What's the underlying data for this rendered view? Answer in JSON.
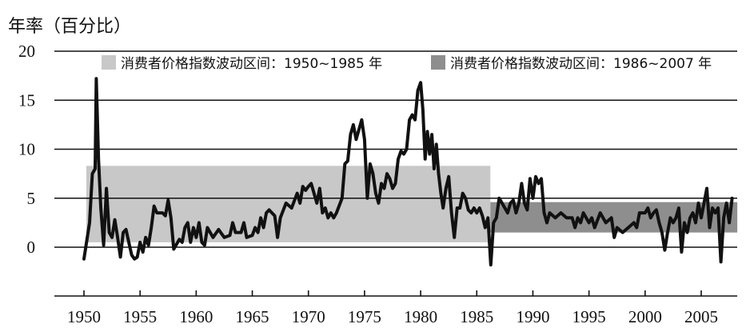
{
  "chart_data": {
    "type": "line",
    "title": "",
    "ylabel": "年率（百分比）",
    "xlabel": "",
    "xlim": [
      1950,
      2008
    ],
    "ylim": [
      -3,
      20
    ],
    "xticks": [
      1950,
      1955,
      1960,
      1965,
      1970,
      1975,
      1980,
      1985,
      1990,
      1995,
      2000,
      2005
    ],
    "yticks": [
      0,
      5,
      10,
      15,
      20
    ],
    "grid": "horizontal",
    "legend_position": "top",
    "colors": {
      "line": "#111111",
      "band1": "#c8c8c8",
      "band2": "#8e8e8e"
    },
    "bands": [
      {
        "name": "消费者价格指数波动区间：1950~1985 年",
        "x0": 1950,
        "x1": 1986,
        "y0": 0.5,
        "y1": 8.3
      },
      {
        "name": "消费者价格指数波动区间：1986~2007 年",
        "x0": 1986,
        "x1": 2008,
        "y0": 1.5,
        "y1": 4.6
      }
    ],
    "series": [
      {
        "values": [
          [
            1950.0,
            -1.2
          ],
          [
            1950.5,
            2.5
          ],
          [
            1950.75,
            7.5
          ],
          [
            1951.0,
            8.0
          ],
          [
            1951.1,
            17.2
          ],
          [
            1951.3,
            9.0
          ],
          [
            1951.5,
            4.0
          ],
          [
            1951.75,
            0.2
          ],
          [
            1952.0,
            6.0
          ],
          [
            1952.25,
            1.5
          ],
          [
            1952.5,
            1.0
          ],
          [
            1952.75,
            2.8
          ],
          [
            1953.0,
            1.0
          ],
          [
            1953.25,
            -1.0
          ],
          [
            1953.5,
            1.5
          ],
          [
            1953.75,
            1.8
          ],
          [
            1954.0,
            0.5
          ],
          [
            1954.25,
            -0.8
          ],
          [
            1954.5,
            -1.2
          ],
          [
            1954.75,
            -1.0
          ],
          [
            1955.0,
            0.5
          ],
          [
            1955.25,
            -0.5
          ],
          [
            1955.5,
            1.0
          ],
          [
            1955.75,
            0.2
          ],
          [
            1956.0,
            2.0
          ],
          [
            1956.25,
            4.2
          ],
          [
            1956.5,
            3.5
          ],
          [
            1957.0,
            3.5
          ],
          [
            1957.25,
            3.2
          ],
          [
            1957.5,
            4.8
          ],
          [
            1957.75,
            3.0
          ],
          [
            1958.0,
            -0.2
          ],
          [
            1958.5,
            0.8
          ],
          [
            1958.75,
            0.5
          ],
          [
            1959.0,
            2.0
          ],
          [
            1959.25,
            2.5
          ],
          [
            1959.5,
            0.5
          ],
          [
            1959.75,
            2.0
          ],
          [
            1960.0,
            1.0
          ],
          [
            1960.25,
            2.5
          ],
          [
            1960.5,
            0.5
          ],
          [
            1960.75,
            0.2
          ],
          [
            1961.0,
            2.0
          ],
          [
            1961.5,
            1.0
          ],
          [
            1962.0,
            1.8
          ],
          [
            1962.5,
            1.0
          ],
          [
            1963.0,
            1.2
          ],
          [
            1963.25,
            2.5
          ],
          [
            1963.5,
            1.5
          ],
          [
            1964.0,
            1.5
          ],
          [
            1964.25,
            2.5
          ],
          [
            1964.5,
            1.0
          ],
          [
            1965.0,
            1.2
          ],
          [
            1965.25,
            2.0
          ],
          [
            1965.5,
            1.5
          ],
          [
            1965.75,
            3.0
          ],
          [
            1966.0,
            2.0
          ],
          [
            1966.25,
            3.5
          ],
          [
            1966.5,
            3.8
          ],
          [
            1966.75,
            3.5
          ],
          [
            1967.0,
            3.2
          ],
          [
            1967.25,
            1.0
          ],
          [
            1967.5,
            3.0
          ],
          [
            1968.0,
            4.5
          ],
          [
            1968.5,
            4.0
          ],
          [
            1969.0,
            5.5
          ],
          [
            1969.25,
            4.5
          ],
          [
            1969.5,
            6.2
          ],
          [
            1969.75,
            5.8
          ],
          [
            1970.0,
            6.2
          ],
          [
            1970.25,
            6.5
          ],
          [
            1970.5,
            5.5
          ],
          [
            1970.75,
            4.5
          ],
          [
            1971.0,
            6.0
          ],
          [
            1971.25,
            3.5
          ],
          [
            1971.5,
            4.0
          ],
          [
            1971.75,
            3.0
          ],
          [
            1972.0,
            3.5
          ],
          [
            1972.25,
            3.0
          ],
          [
            1972.5,
            3.5
          ],
          [
            1973.0,
            5.0
          ],
          [
            1973.25,
            8.5
          ],
          [
            1973.5,
            8.8
          ],
          [
            1973.75,
            11.5
          ],
          [
            1974.0,
            12.5
          ],
          [
            1974.25,
            11.0
          ],
          [
            1974.5,
            12.0
          ],
          [
            1974.75,
            13.0
          ],
          [
            1975.0,
            11.0
          ],
          [
            1975.25,
            5.0
          ],
          [
            1975.5,
            8.5
          ],
          [
            1975.75,
            7.5
          ],
          [
            1976.0,
            5.5
          ],
          [
            1976.25,
            4.5
          ],
          [
            1976.5,
            6.5
          ],
          [
            1976.75,
            6.0
          ],
          [
            1977.0,
            7.5
          ],
          [
            1977.25,
            7.0
          ],
          [
            1977.5,
            6.0
          ],
          [
            1977.75,
            6.5
          ],
          [
            1978.0,
            9.0
          ],
          [
            1978.25,
            9.8
          ],
          [
            1978.5,
            9.5
          ],
          [
            1978.75,
            10.0
          ],
          [
            1979.0,
            13.0
          ],
          [
            1979.25,
            13.5
          ],
          [
            1979.5,
            13.0
          ],
          [
            1979.75,
            16.0
          ],
          [
            1980.0,
            16.8
          ],
          [
            1980.2,
            14.0
          ],
          [
            1980.4,
            9.0
          ],
          [
            1980.6,
            11.8
          ],
          [
            1980.8,
            9.5
          ],
          [
            1981.0,
            11.5
          ],
          [
            1981.2,
            8.0
          ],
          [
            1981.4,
            10.5
          ],
          [
            1981.6,
            7.5
          ],
          [
            1981.8,
            5.5
          ],
          [
            1982.0,
            4.0
          ],
          [
            1982.25,
            6.0
          ],
          [
            1982.5,
            7.2
          ],
          [
            1982.75,
            3.5
          ],
          [
            1983.0,
            1.0
          ],
          [
            1983.25,
            4.0
          ],
          [
            1983.5,
            4.0
          ],
          [
            1983.75,
            5.5
          ],
          [
            1984.0,
            5.0
          ],
          [
            1984.25,
            3.8
          ],
          [
            1984.5,
            3.5
          ],
          [
            1984.75,
            4.0
          ],
          [
            1985.0,
            3.5
          ],
          [
            1985.25,
            4.0
          ],
          [
            1985.5,
            3.2
          ],
          [
            1985.75,
            2.0
          ],
          [
            1986.0,
            3.0
          ],
          [
            1986.25,
            -1.8
          ],
          [
            1986.5,
            2.5
          ],
          [
            1986.75,
            3.0
          ],
          [
            1987.0,
            5.0
          ],
          [
            1987.25,
            4.5
          ],
          [
            1987.5,
            4.0
          ],
          [
            1987.75,
            3.5
          ],
          [
            1988.0,
            4.5
          ],
          [
            1988.25,
            4.8
          ],
          [
            1988.5,
            3.5
          ],
          [
            1988.75,
            4.5
          ],
          [
            1989.0,
            6.5
          ],
          [
            1989.25,
            4.5
          ],
          [
            1989.5,
            3.8
          ],
          [
            1989.75,
            7.0
          ],
          [
            1990.0,
            5.0
          ],
          [
            1990.25,
            7.2
          ],
          [
            1990.5,
            6.5
          ],
          [
            1990.75,
            7.0
          ],
          [
            1991.0,
            3.5
          ],
          [
            1991.25,
            2.5
          ],
          [
            1991.5,
            3.5
          ],
          [
            1992.0,
            3.0
          ],
          [
            1992.5,
            3.5
          ],
          [
            1993.0,
            3.0
          ],
          [
            1993.5,
            3.0
          ],
          [
            1993.75,
            2.0
          ],
          [
            1994.0,
            3.0
          ],
          [
            1994.25,
            2.5
          ],
          [
            1994.5,
            3.5
          ],
          [
            1995.0,
            2.5
          ],
          [
            1995.25,
            3.0
          ],
          [
            1995.5,
            2.0
          ],
          [
            1996.0,
            3.5
          ],
          [
            1996.5,
            2.5
          ],
          [
            1997.0,
            3.0
          ],
          [
            1997.25,
            1.0
          ],
          [
            1997.5,
            2.0
          ],
          [
            1998.0,
            1.5
          ],
          [
            1998.5,
            2.0
          ],
          [
            1999.0,
            2.5
          ],
          [
            1999.25,
            2.0
          ],
          [
            1999.5,
            3.5
          ],
          [
            2000.0,
            3.5
          ],
          [
            2000.25,
            4.0
          ],
          [
            2000.5,
            3.0
          ],
          [
            2000.75,
            3.5
          ],
          [
            2001.0,
            3.8
          ],
          [
            2001.25,
            2.5
          ],
          [
            2001.5,
            1.5
          ],
          [
            2001.75,
            -0.3
          ],
          [
            2002.0,
            1.5
          ],
          [
            2002.25,
            3.0
          ],
          [
            2002.5,
            2.5
          ],
          [
            2002.75,
            3.0
          ],
          [
            2003.0,
            4.0
          ],
          [
            2003.25,
            -0.5
          ],
          [
            2003.5,
            2.5
          ],
          [
            2003.75,
            1.5
          ],
          [
            2004.0,
            3.0
          ],
          [
            2004.25,
            3.5
          ],
          [
            2004.5,
            2.5
          ],
          [
            2004.75,
            4.5
          ],
          [
            2005.0,
            3.0
          ],
          [
            2005.25,
            4.5
          ],
          [
            2005.5,
            6.0
          ],
          [
            2005.75,
            2.0
          ],
          [
            2006.0,
            4.0
          ],
          [
            2006.25,
            3.5
          ],
          [
            2006.5,
            4.0
          ],
          [
            2006.75,
            -1.5
          ],
          [
            2007.0,
            3.0
          ],
          [
            2007.25,
            4.5
          ],
          [
            2007.5,
            2.5
          ],
          [
            2007.75,
            5.0
          ]
        ]
      }
    ]
  }
}
